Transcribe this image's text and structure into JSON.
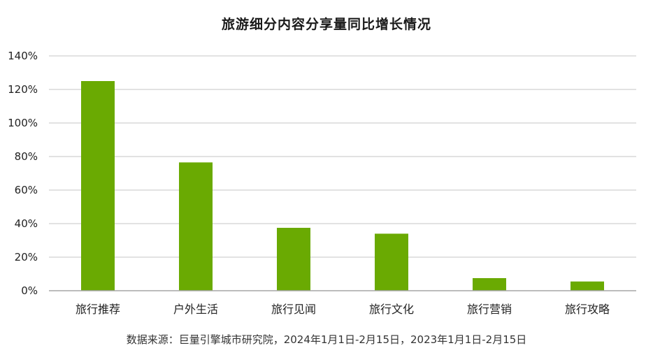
{
  "chart_data": {
    "type": "bar",
    "title": "旅游细分内容分享量同比增长情况",
    "categories": [
      "旅行推荐",
      "户外生活",
      "旅行见闻",
      "旅行文化",
      "旅行营销",
      "旅行攻略"
    ],
    "values": [
      125,
      76.5,
      37.5,
      34,
      7.5,
      5.5
    ],
    "value_unit": "%",
    "ylim": [
      0,
      140
    ],
    "yticks": [
      0,
      20,
      40,
      60,
      80,
      100,
      120,
      140
    ],
    "ytick_labels": [
      "0%",
      "20%",
      "40%",
      "60%",
      "80%",
      "100%",
      "120%",
      "140%"
    ],
    "grid": true,
    "bar_color": "#6aaa02",
    "grid_color": "#c6c6c6",
    "axis_color": "#a6a6a6"
  },
  "source_note": "数据来源：巨量引擎城市研究院，2024年1月1日-2月15日，2023年1月1日-2月15日"
}
